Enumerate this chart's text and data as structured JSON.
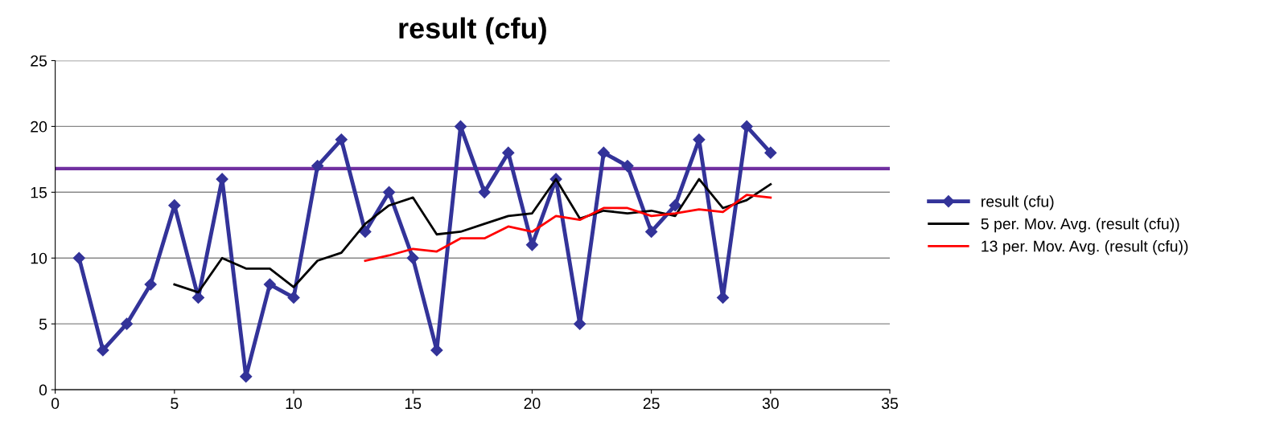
{
  "chart_data": {
    "type": "line",
    "title": "result (cfu)",
    "xlim": [
      0,
      35
    ],
    "xticks": [
      0,
      5,
      10,
      15,
      20,
      25,
      30,
      35
    ],
    "ylim": [
      0,
      25
    ],
    "yticks": [
      0,
      5,
      10,
      15,
      20,
      25
    ],
    "grid": "y",
    "legend": "right",
    "series": [
      {
        "name": "result (cfu)",
        "color": "#333399",
        "marker": "diamond",
        "x": [
          1,
          2,
          3,
          4,
          5,
          6,
          7,
          8,
          9,
          10,
          11,
          12,
          13,
          14,
          15,
          16,
          17,
          18,
          19,
          20,
          21,
          22,
          23,
          24,
          25,
          26,
          27,
          28,
          29,
          30
        ],
        "values": [
          10,
          3,
          5,
          8,
          14,
          7,
          16,
          1,
          8,
          7,
          17,
          19,
          12,
          15,
          10,
          3,
          20,
          15,
          18,
          11,
          16,
          5,
          18,
          17,
          12,
          14,
          19,
          7,
          20,
          18
        ]
      },
      {
        "name": "5 per. Mov. Avg. (result (cfu))",
        "color": "#000000",
        "marker": "none",
        "x": [
          5,
          6,
          7,
          8,
          9,
          10,
          11,
          12,
          13,
          14,
          15,
          16,
          17,
          18,
          19,
          20,
          21,
          22,
          23,
          24,
          25,
          26,
          27,
          28,
          29,
          30
        ],
        "values": [
          8,
          7.4,
          10,
          9.2,
          9.2,
          7.8,
          9.8,
          10.4,
          12.6,
          14,
          14.6,
          11.8,
          12,
          12.6,
          13.2,
          13.4,
          16,
          13,
          13.6,
          13.4,
          13.6,
          13.2,
          16,
          13.8,
          14.4,
          15.6
        ]
      },
      {
        "name": "13 per. Mov. Avg. (result (cfu))",
        "color": "#ff0000",
        "marker": "none",
        "x": [
          13,
          14,
          15,
          16,
          17,
          18,
          19,
          20,
          21,
          22,
          23,
          24,
          25,
          26,
          27,
          28,
          29,
          30
        ],
        "values": [
          9.8,
          10.2,
          10.7,
          10.5,
          11.5,
          11.5,
          12.4,
          12,
          13.2,
          12.9,
          13.8,
          13.8,
          13.2,
          13.4,
          13.7,
          13.5,
          14.8,
          14.6
        ]
      }
    ],
    "ref_lines": [
      {
        "axis": "y",
        "value": 16.8,
        "color": "#7030a0"
      }
    ]
  }
}
